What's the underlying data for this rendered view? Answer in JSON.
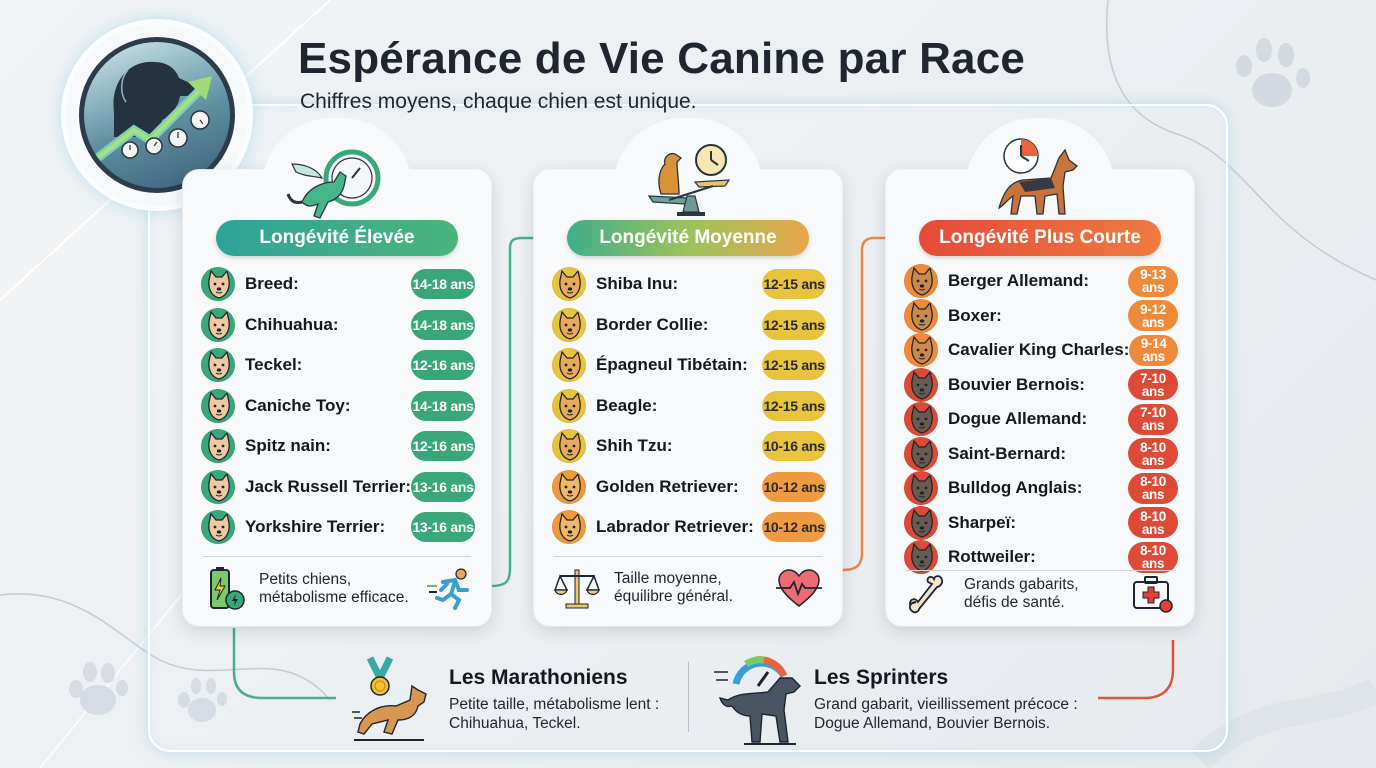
{
  "header": {
    "title": "Espérance de Vie Canine par Race",
    "subtitle": "Chiffres moyens, chaque chien est unique.",
    "logo_icon": "dog-lifespan-chart-icon"
  },
  "colors": {
    "high": "#3aa77a",
    "medium": "#e8c43c",
    "medium_orange": "#ef9a3e",
    "short_orange": "#ef8a3a",
    "short_red": "#dd4a36",
    "connector_green": "#4cae8a",
    "connector_orange": "#e9874a",
    "connector_red": "#d9553d"
  },
  "categories": [
    {
      "id": "high",
      "title": "Longévité Élevée",
      "header_icon": "winged-dog-clock-icon",
      "breeds": [
        {
          "name": "Breed:",
          "range": "14-18 ans",
          "icon": "boston-terrier-icon",
          "tone": "high"
        },
        {
          "name": "Chihuahua:",
          "range": "14-18 ans",
          "icon": "chihuahua-icon",
          "tone": "high"
        },
        {
          "name": "Teckel:",
          "range": "12-16 ans",
          "icon": "dachshund-icon",
          "tone": "high"
        },
        {
          "name": "Caniche Toy:",
          "range": "14-18 ans",
          "icon": "poodle-icon",
          "tone": "high"
        },
        {
          "name": "Spitz nain:",
          "range": "12-16 ans",
          "icon": "pomeranian-icon",
          "tone": "high"
        },
        {
          "name": "Jack Russell Terrier:",
          "range": "13-16 ans",
          "icon": "jack-russell-icon",
          "tone": "high"
        },
        {
          "name": "Yorkshire Terrier:",
          "range": "13-16 ans",
          "icon": "yorkshire-icon",
          "tone": "high"
        }
      ],
      "footer": {
        "line1": "Petits chiens,",
        "line2": "métabolisme efficace.",
        "left_icon": "battery-charging-icon",
        "right_icon": "running-person-icon"
      }
    },
    {
      "id": "medium",
      "title": "Longévité Moyenne",
      "header_icon": "dog-balance-clock-icon",
      "breeds": [
        {
          "name": "Shiba Inu:",
          "range": "12-15 ans",
          "icon": "shiba-inu-icon",
          "tone": "medium"
        },
        {
          "name": "Border Collie:",
          "range": "12-15 ans",
          "icon": "border-collie-icon",
          "tone": "medium"
        },
        {
          "name": "Épagneul Tibétain:",
          "range": "12-15 ans",
          "icon": "tibetan-spaniel-icon",
          "tone": "medium"
        },
        {
          "name": "Beagle:",
          "range": "12-15 ans",
          "icon": "beagle-icon",
          "tone": "medium"
        },
        {
          "name": "Shih Tzu:",
          "range": "10-16 ans",
          "icon": "shih-tzu-icon",
          "tone": "medium"
        },
        {
          "name": "Golden Retriever:",
          "range": "10-12 ans",
          "icon": "golden-retriever-icon",
          "tone": "medium_orange"
        },
        {
          "name": "Labrador Retriever:",
          "range": "10-12 ans",
          "icon": "labrador-icon",
          "tone": "medium_orange"
        }
      ],
      "footer": {
        "line1": "Taille moyenne,",
        "line2": "équilibre général.",
        "left_icon": "balance-scale-icon",
        "right_icon": "heartbeat-icon"
      }
    },
    {
      "id": "short",
      "title": "Longévité Plus Courte",
      "header_icon": "german-shepherd-clock-icon",
      "breeds": [
        {
          "name": "Berger Allemand:",
          "range_top": "9-13",
          "range_bottom": "ans",
          "icon": "german-shepherd-icon",
          "tone": "short_orange"
        },
        {
          "name": "Boxer:",
          "range_top": "9-12",
          "range_bottom": "ans",
          "icon": "boxer-icon",
          "tone": "short_orange"
        },
        {
          "name": "Cavalier King Charles:",
          "range_top": "9-14",
          "range_bottom": "ans",
          "icon": "cavalier-icon",
          "tone": "short_orange"
        },
        {
          "name": "Bouvier Bernois:",
          "range_top": "7-10",
          "range_bottom": "ans",
          "icon": "bernese-icon",
          "tone": "short_red"
        },
        {
          "name": "Dogue Allemand:",
          "range_top": "7-10",
          "range_bottom": "ans",
          "icon": "great-dane-icon",
          "tone": "short_red"
        },
        {
          "name": "Saint-Bernard:",
          "range_top": "8-10",
          "range_bottom": "ans",
          "icon": "saint-bernard-icon",
          "tone": "short_red"
        },
        {
          "name": "Bulldog Anglais:",
          "range_top": "8-10",
          "range_bottom": "ans",
          "icon": "bulldog-icon",
          "tone": "short_red"
        },
        {
          "name": "Sharpeï:",
          "range_top": "8-10",
          "range_bottom": "ans",
          "icon": "sharpei-icon",
          "tone": "short_red"
        },
        {
          "name": "Rottweiler:",
          "range_top": "8-10",
          "range_bottom": "ans",
          "icon": "rottweiler-icon",
          "tone": "short_red"
        }
      ],
      "footer": {
        "line1": "Grands gabarits,",
        "line2": "défis de santé.",
        "left_icon": "bone-icon",
        "right_icon": "first-aid-kit-icon"
      }
    }
  ],
  "bottom": {
    "marathon": {
      "title": "Les Marathoniens",
      "line1": "Petite taille, métabolisme lent :",
      "line2": "Chihuahua, Teckel.",
      "icon": "running-dog-medal-icon"
    },
    "sprint": {
      "title": "Les Sprinters",
      "line1": "Grand gabarit, vieillissement précoce :",
      "line2": "Dogue Allemand, Bouvier Bernois.",
      "icon": "dog-speedometer-icon"
    }
  }
}
